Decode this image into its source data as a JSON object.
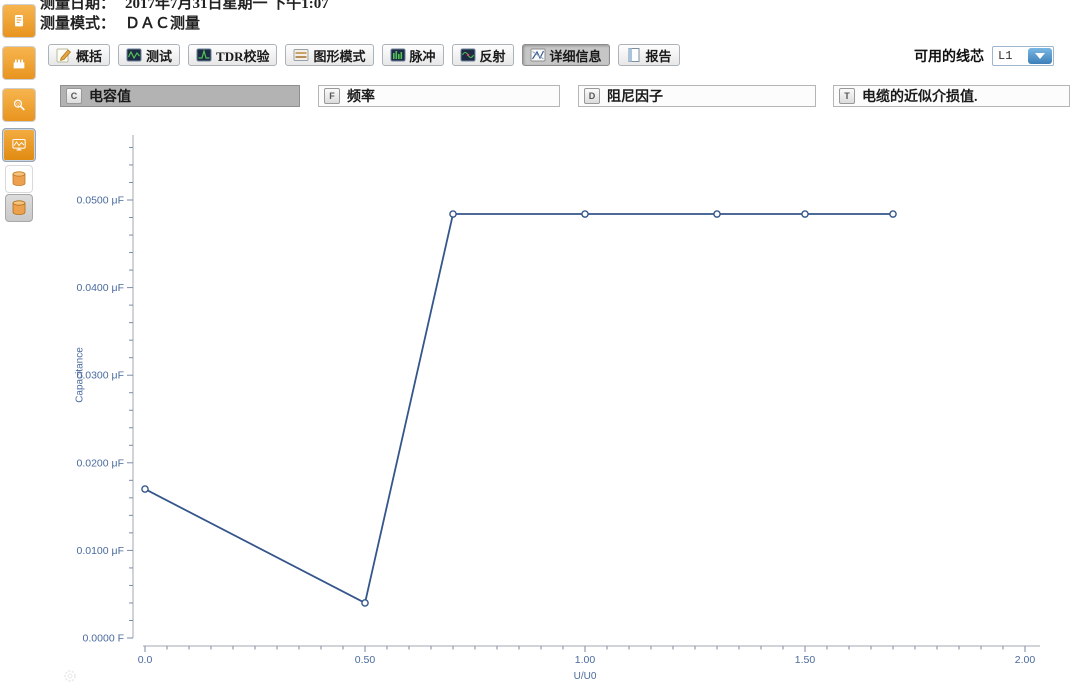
{
  "header": {
    "date_label": "测量日期：",
    "date_value": "2017年7月31日星期一  下午1:07",
    "mode_label": "测量模式：",
    "mode_value": "ＤＡＣ测量"
  },
  "sidebar": {
    "icons": [
      "report-document-icon",
      "connector-icon",
      "search-magnifier-icon",
      "waveform-monitor-icon",
      "database-icon",
      "database-icon"
    ]
  },
  "toolbar": {
    "buttons": [
      {
        "label": "概括",
        "icon": "edit-pencil-icon",
        "active": false
      },
      {
        "label": "测试",
        "icon": "waveform-screen-icon",
        "active": false
      },
      {
        "label": "TDR校验",
        "icon": "waveform-screen-icon",
        "active": false
      },
      {
        "label": "图形模式",
        "icon": "layers-lines-icon",
        "active": false
      },
      {
        "label": "脉冲",
        "icon": "pulse-bars-icon",
        "active": false
      },
      {
        "label": "反射",
        "icon": "reflection-wave-icon",
        "active": false
      },
      {
        "label": "详细信息",
        "icon": "detail-chart-icon",
        "active": true
      },
      {
        "label": "报告",
        "icon": "report-page-icon",
        "active": false
      }
    ],
    "core_select": {
      "label": "可用的线芯",
      "value": "L1"
    }
  },
  "tabs": [
    {
      "key": "C",
      "label": "电容值",
      "active": true
    },
    {
      "key": "F",
      "label": "频率",
      "active": false
    },
    {
      "key": "D",
      "label": "阻尼因子",
      "active": false
    },
    {
      "key": "T",
      "label": "电缆的近似介损值.",
      "active": false
    }
  ],
  "chart_data": {
    "type": "line",
    "title": "",
    "xlabel": "U/U0",
    "ylabel": "Capacitance",
    "series": [
      {
        "name": "Capacitance",
        "x": [
          0.0,
          0.5,
          0.7,
          1.0,
          1.3,
          1.5,
          1.7
        ],
        "y_uF": [
          0.017,
          0.004,
          0.0484,
          0.0484,
          0.0484,
          0.0484,
          0.0484
        ]
      }
    ],
    "x_ticks": {
      "values": [
        0,
        0.5,
        1.0,
        1.5,
        2.0
      ],
      "labels": [
        "0.0",
        "0.50",
        "1.00",
        "1.50",
        "2.00"
      ]
    },
    "y_ticks": {
      "values": [
        0,
        0.01,
        0.02,
        0.03,
        0.04,
        0.05
      ],
      "labels": [
        "0.0000 F",
        "0.0100 μF",
        "0.0200 μF",
        "0.0300 μF",
        "0.0400 μF",
        "0.0500 μF"
      ]
    },
    "xlim": [
      0,
      2.034
    ],
    "ylim": [
      0,
      0.0574
    ],
    "minor_x_step": 0.05,
    "minor_y_step": 0.002,
    "grid": false,
    "legend": false,
    "line_color": "#35568b",
    "marker_fill": "#ffffff",
    "tick_label_color": "#4a6a9d",
    "axis_color": "#a2a8b0"
  }
}
